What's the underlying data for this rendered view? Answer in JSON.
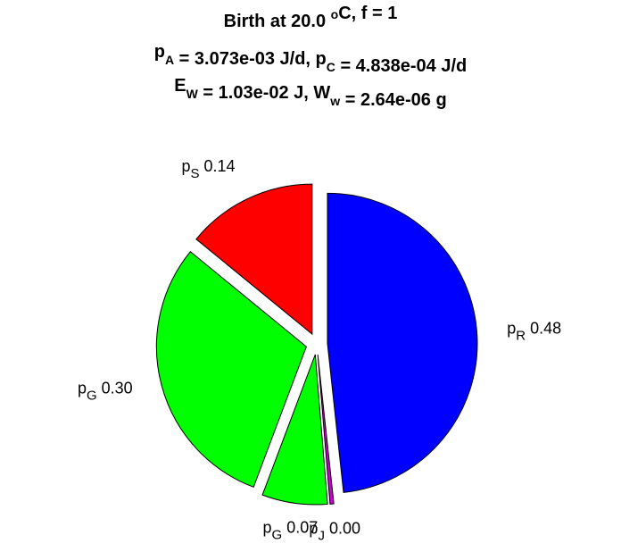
{
  "chart_data": {
    "type": "pie",
    "title": [
      [
        "Birth at 20.0 ",
        {
          "text": "o",
          "script": "sup"
        },
        "C, f = 1"
      ],
      [
        "p",
        {
          "text": "A",
          "script": "sub"
        },
        " = 3.073e-03 J/d, p",
        {
          "text": "C",
          "script": "sub"
        },
        " = 4.838e-04 J/d"
      ],
      [
        "E",
        {
          "text": "W",
          "script": "sub"
        },
        " = 1.03e-02 J, W",
        {
          "text": "w",
          "script": "sub"
        },
        " = 2.64e-06 g"
      ]
    ],
    "categories": [
      [
        "p",
        "R"
      ],
      [
        "p",
        "J"
      ],
      [
        "p",
        "G"
      ],
      [
        "p",
        "G"
      ],
      [
        "p",
        "S"
      ]
    ],
    "values": [
      0.48,
      0.004,
      0.07,
      0.3,
      0.14
    ],
    "value_labels": [
      "0.48",
      "0.00",
      "0.07",
      "0.30",
      "0.14"
    ],
    "colors": [
      "#0000ff",
      "#cc00cc",
      "#00ff00",
      "#00ff00",
      "#ff0000"
    ]
  }
}
